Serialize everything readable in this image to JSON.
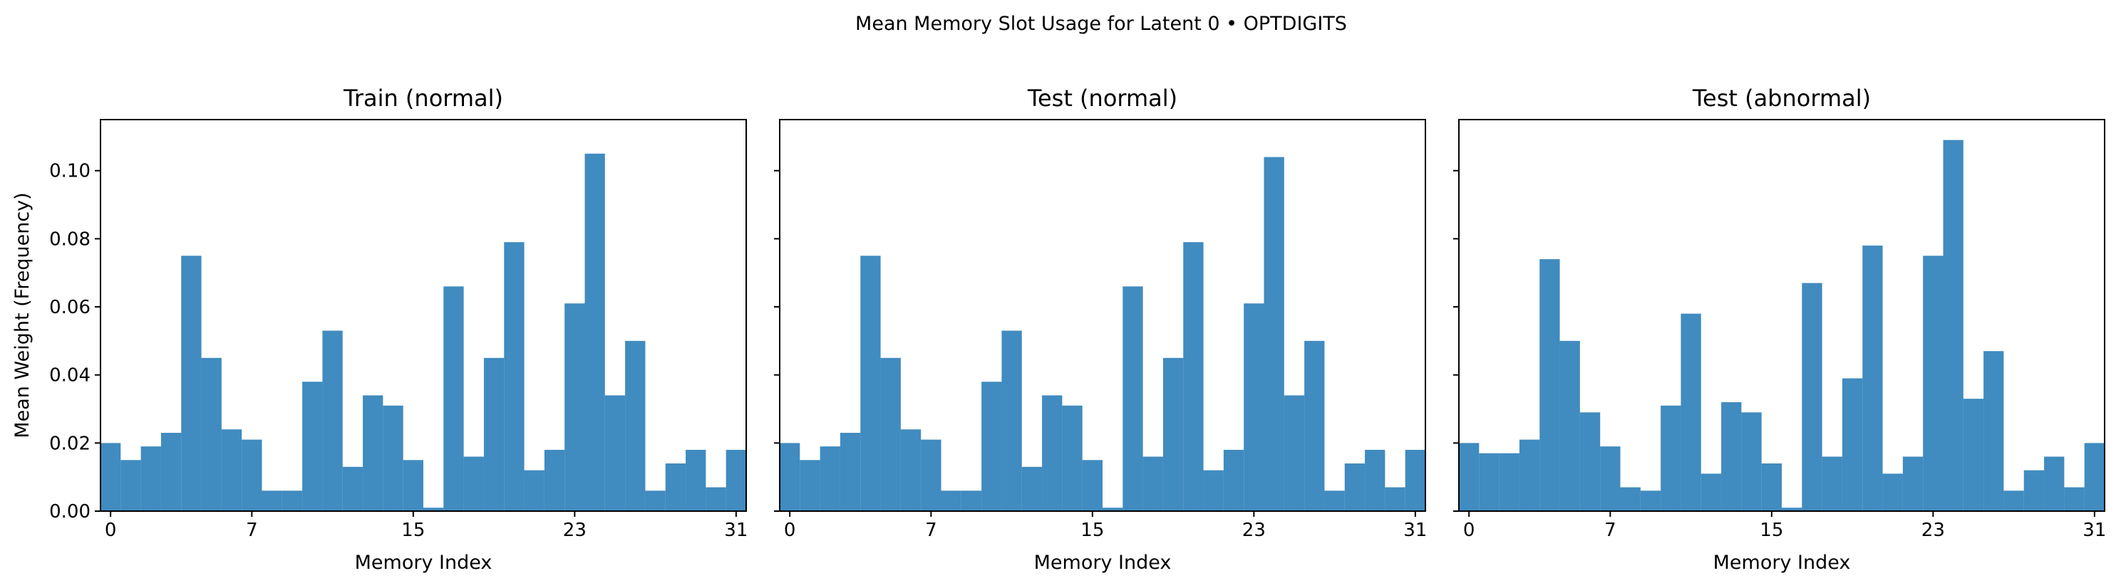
{
  "figure": {
    "title": "Mean Memory Slot Usage for Latent 0 • OPTDIGITS"
  },
  "chart_data": [
    {
      "type": "bar",
      "title": "Train (normal)",
      "xlabel": "Memory Index",
      "ylabel": "Mean Weight (Frequency)",
      "xticks": [
        "0",
        "7",
        "15",
        "23",
        "31"
      ],
      "yticks": [
        "0.00",
        "0.02",
        "0.04",
        "0.06",
        "0.08",
        "0.10"
      ],
      "ylim": [
        0,
        0.115
      ],
      "xlim": [
        -0.5,
        31.5
      ],
      "bar_color": "#1f77b4",
      "categories": [
        0,
        1,
        2,
        3,
        4,
        5,
        6,
        7,
        8,
        9,
        10,
        11,
        12,
        13,
        14,
        15,
        16,
        17,
        18,
        19,
        20,
        21,
        22,
        23,
        24,
        25,
        26,
        27,
        28,
        29,
        30,
        31
      ],
      "values": [
        0.02,
        0.015,
        0.019,
        0.023,
        0.075,
        0.045,
        0.024,
        0.021,
        0.006,
        0.006,
        0.038,
        0.053,
        0.013,
        0.034,
        0.031,
        0.015,
        0.001,
        0.066,
        0.016,
        0.045,
        0.079,
        0.012,
        0.018,
        0.061,
        0.105,
        0.034,
        0.05,
        0.006,
        0.014,
        0.018,
        0.007,
        0.018
      ]
    },
    {
      "type": "bar",
      "title": "Test (normal)",
      "xlabel": "Memory Index",
      "ylabel": "",
      "xticks": [
        "0",
        "7",
        "15",
        "23",
        "31"
      ],
      "yticks": [
        "",
        "",
        "",
        "",
        "",
        ""
      ],
      "ylim": [
        0,
        0.115
      ],
      "xlim": [
        -0.5,
        31.5
      ],
      "bar_color": "#1f77b4",
      "categories": [
        0,
        1,
        2,
        3,
        4,
        5,
        6,
        7,
        8,
        9,
        10,
        11,
        12,
        13,
        14,
        15,
        16,
        17,
        18,
        19,
        20,
        21,
        22,
        23,
        24,
        25,
        26,
        27,
        28,
        29,
        30,
        31
      ],
      "values": [
        0.02,
        0.015,
        0.019,
        0.023,
        0.075,
        0.045,
        0.024,
        0.021,
        0.006,
        0.006,
        0.038,
        0.053,
        0.013,
        0.034,
        0.031,
        0.015,
        0.001,
        0.066,
        0.016,
        0.045,
        0.079,
        0.012,
        0.018,
        0.061,
        0.104,
        0.034,
        0.05,
        0.006,
        0.014,
        0.018,
        0.007,
        0.018
      ]
    },
    {
      "type": "bar",
      "title": "Test (abnormal)",
      "xlabel": "Memory Index",
      "ylabel": "",
      "xticks": [
        "0",
        "7",
        "15",
        "23",
        "31"
      ],
      "yticks": [
        "",
        "",
        "",
        "",
        "",
        ""
      ],
      "ylim": [
        0,
        0.115
      ],
      "xlim": [
        -0.5,
        31.5
      ],
      "bar_color": "#1f77b4",
      "categories": [
        0,
        1,
        2,
        3,
        4,
        5,
        6,
        7,
        8,
        9,
        10,
        11,
        12,
        13,
        14,
        15,
        16,
        17,
        18,
        19,
        20,
        21,
        22,
        23,
        24,
        25,
        26,
        27,
        28,
        29,
        30,
        31
      ],
      "values": [
        0.02,
        0.017,
        0.017,
        0.021,
        0.074,
        0.05,
        0.029,
        0.019,
        0.007,
        0.006,
        0.031,
        0.058,
        0.011,
        0.032,
        0.029,
        0.014,
        0.001,
        0.067,
        0.016,
        0.039,
        0.078,
        0.011,
        0.016,
        0.075,
        0.109,
        0.033,
        0.047,
        0.006,
        0.012,
        0.016,
        0.007,
        0.02
      ]
    }
  ]
}
